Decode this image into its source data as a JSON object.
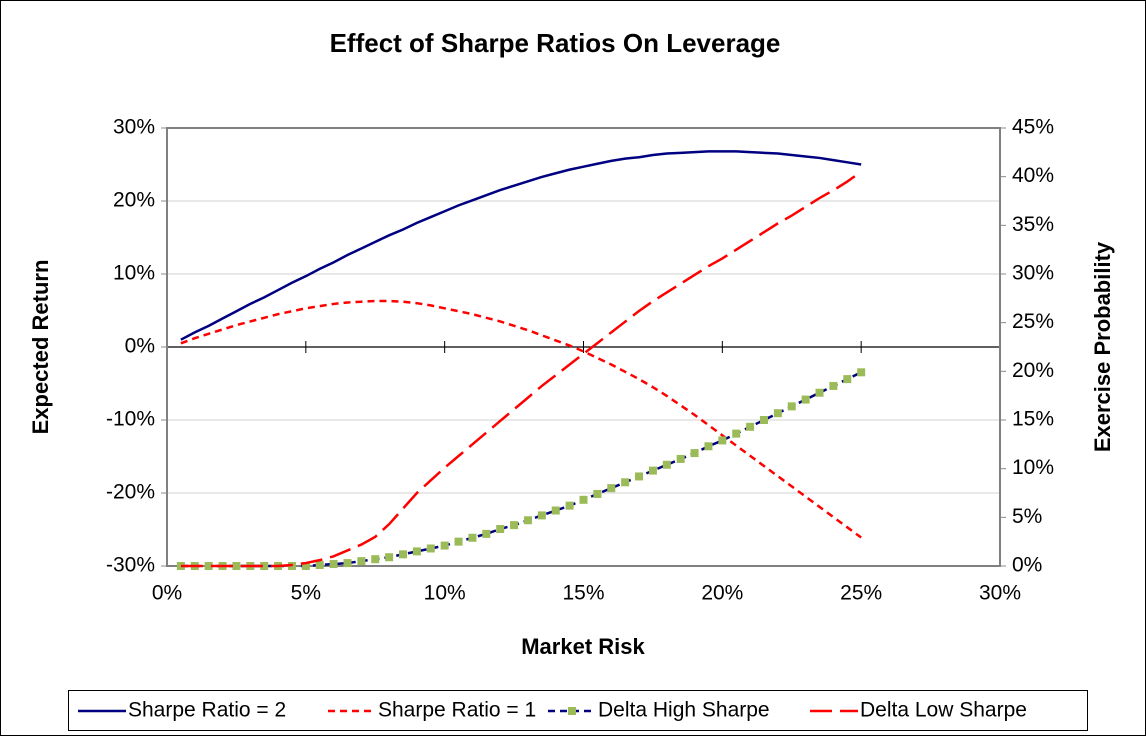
{
  "chart_data": {
    "type": "line",
    "title": "Effect of Sharpe Ratios On Leverage",
    "x_label": "Market Risk",
    "y_label": "Expected Return",
    "y2_label": "Exercise Probability",
    "x": [
      0.5,
      1,
      1.5,
      2,
      2.5,
      3,
      3.5,
      4,
      4.5,
      5,
      5.5,
      6,
      6.5,
      7,
      7.5,
      8,
      8.5,
      9,
      9.5,
      10,
      10.5,
      11,
      11.5,
      12,
      12.5,
      13,
      13.5,
      14,
      14.5,
      15,
      15.5,
      16,
      16.5,
      17,
      17.5,
      18,
      18.5,
      19,
      19.5,
      20,
      20.5,
      21,
      21.5,
      22,
      22.5,
      23,
      23.5,
      24,
      24.5,
      25
    ],
    "series": [
      {
        "name": "Sharpe Ratio = 2",
        "color": "#000080",
        "line_style": "solid",
        "axis": "y",
        "values": [
          1.0,
          2.0,
          2.9,
          3.9,
          4.9,
          5.9,
          6.8,
          7.8,
          8.8,
          9.7,
          10.7,
          11.6,
          12.6,
          13.5,
          14.4,
          15.3,
          16.1,
          17.0,
          17.8,
          18.6,
          19.4,
          20.1,
          20.8,
          21.5,
          22.1,
          22.7,
          23.3,
          23.8,
          24.3,
          24.7,
          25.1,
          25.5,
          25.8,
          26.0,
          26.3,
          26.5,
          26.6,
          26.7,
          26.8,
          26.8,
          26.8,
          26.7,
          26.6,
          26.5,
          26.3,
          26.1,
          25.9,
          25.6,
          25.3,
          25.0
        ]
      },
      {
        "name": "Sharpe Ratio = 1",
        "color": "#ff0000",
        "line_style": "dashed",
        "axis": "y",
        "values": [
          0.5,
          1.2,
          1.8,
          2.4,
          3.0,
          3.5,
          4.0,
          4.5,
          4.9,
          5.3,
          5.6,
          5.9,
          6.1,
          6.2,
          6.3,
          6.3,
          6.2,
          6.0,
          5.7,
          5.3,
          4.9,
          4.5,
          4.0,
          3.5,
          2.9,
          2.3,
          1.6,
          0.9,
          0.2,
          -0.6,
          -1.5,
          -2.4,
          -3.4,
          -4.4,
          -5.5,
          -6.7,
          -8.0,
          -9.3,
          -10.7,
          -12.1,
          -13.5,
          -14.9,
          -16.3,
          -17.7,
          -19.1,
          -20.5,
          -21.9,
          -23.3,
          -24.7,
          -26.1
        ]
      },
      {
        "name": "Delta High Sharpe",
        "color": "#000080",
        "marker_color": "#9bbb59",
        "marker": "square",
        "line_style": "dashed",
        "axis": "y2",
        "values": [
          0,
          0,
          0,
          0,
          0,
          0,
          0,
          0,
          0,
          0,
          0.1,
          0.2,
          0.3,
          0.5,
          0.7,
          0.9,
          1.2,
          1.5,
          1.8,
          2.1,
          2.5,
          2.9,
          3.3,
          3.8,
          4.2,
          4.7,
          5.2,
          5.7,
          6.2,
          6.8,
          7.4,
          8.0,
          8.6,
          9.2,
          9.8,
          10.4,
          11.0,
          11.6,
          12.3,
          12.9,
          13.6,
          14.3,
          15.0,
          15.7,
          16.4,
          17.1,
          17.8,
          18.5,
          19.2,
          19.9
        ]
      },
      {
        "name": "Delta Low Sharpe",
        "color": "#ff0000",
        "line_style": "long-dashed",
        "axis": "y2",
        "values": [
          0,
          0,
          0,
          0,
          0,
          0,
          0,
          0,
          0.1,
          0.3,
          0.6,
          1.0,
          1.6,
          2.2,
          3.0,
          4.3,
          5.9,
          7.5,
          8.8,
          10.1,
          11.3,
          12.5,
          13.7,
          14.9,
          16.1,
          17.3,
          18.5,
          19.6,
          20.7,
          21.8,
          22.9,
          24.0,
          25.1,
          26.2,
          27.2,
          28.1,
          29.0,
          29.9,
          30.8,
          31.6,
          32.5,
          33.4,
          34.3,
          35.2,
          36.0,
          36.9,
          37.8,
          38.6,
          39.5,
          40.5
        ]
      }
    ],
    "xlim": [
      0,
      30
    ],
    "xticks": [
      {
        "value": 0,
        "label": "0%"
      },
      {
        "value": 5,
        "label": "5%"
      },
      {
        "value": 10,
        "label": "10%"
      },
      {
        "value": 15,
        "label": "15%"
      },
      {
        "value": 20,
        "label": "20%"
      },
      {
        "value": 25,
        "label": "25%"
      },
      {
        "value": 30,
        "label": "30%"
      }
    ],
    "ylim": [
      -30,
      30
    ],
    "yticks": [
      {
        "value": -30,
        "label": "-30%"
      },
      {
        "value": -20,
        "label": "-20%"
      },
      {
        "value": -10,
        "label": "-10%"
      },
      {
        "value": 0,
        "label": "0%"
      },
      {
        "value": 10,
        "label": "10%"
      },
      {
        "value": 20,
        "label": "20%"
      },
      {
        "value": 30,
        "label": "30%"
      }
    ],
    "y2lim": [
      0,
      45
    ],
    "y2ticks": [
      {
        "value": 0,
        "label": "0%"
      },
      {
        "value": 5,
        "label": "5%"
      },
      {
        "value": 10,
        "label": "10%"
      },
      {
        "value": 15,
        "label": "15%"
      },
      {
        "value": 20,
        "label": "20%"
      },
      {
        "value": 25,
        "label": "25%"
      },
      {
        "value": 30,
        "label": "30%"
      },
      {
        "value": 35,
        "label": "35%"
      },
      {
        "value": 40,
        "label": "40%"
      },
      {
        "value": 45,
        "label": "45%"
      }
    ],
    "grid": true,
    "legend": "bottom"
  }
}
